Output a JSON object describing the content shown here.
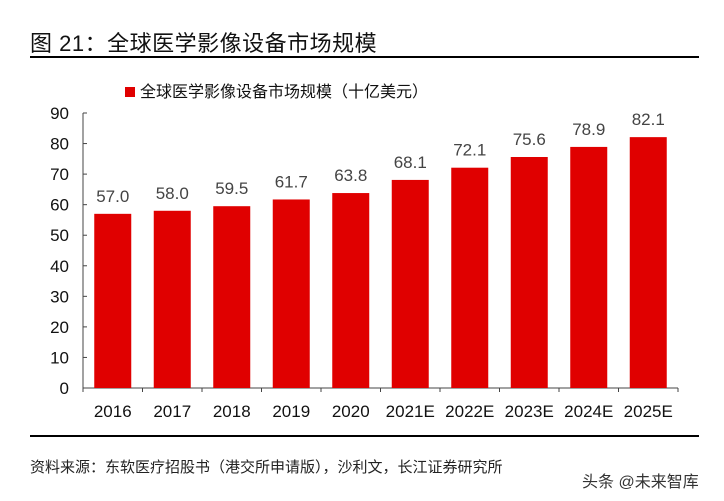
{
  "figure_title": "图 21：全球医学影像设备市场规模",
  "source": "资料来源：东软医疗招股书（港交所申请版），沙利文，长江证券研究所",
  "watermark": "头条 @未来智库",
  "chart_data": {
    "type": "bar",
    "title": "",
    "categories": [
      "2016",
      "2017",
      "2018",
      "2019",
      "2020",
      "2021E",
      "2022E",
      "2023E",
      "2024E",
      "2025E"
    ],
    "series": [
      {
        "name": "全球医学影像设备市场规模（十亿美元）",
        "values": [
          57.0,
          58.0,
          59.5,
          61.7,
          63.8,
          68.1,
          72.1,
          75.6,
          78.9,
          82.1
        ],
        "color": "#e00000"
      }
    ],
    "data_labels": [
      "57.0",
      "58.0",
      "59.5",
      "61.7",
      "63.8",
      "68.1",
      "72.1",
      "75.6",
      "78.9",
      "82.1"
    ],
    "ylim": [
      0,
      90
    ],
    "yticks": [
      0,
      10,
      20,
      30,
      40,
      50,
      60,
      70,
      80,
      90
    ],
    "xlabel": "",
    "ylabel": "",
    "grid": false,
    "legend_position": "top"
  }
}
